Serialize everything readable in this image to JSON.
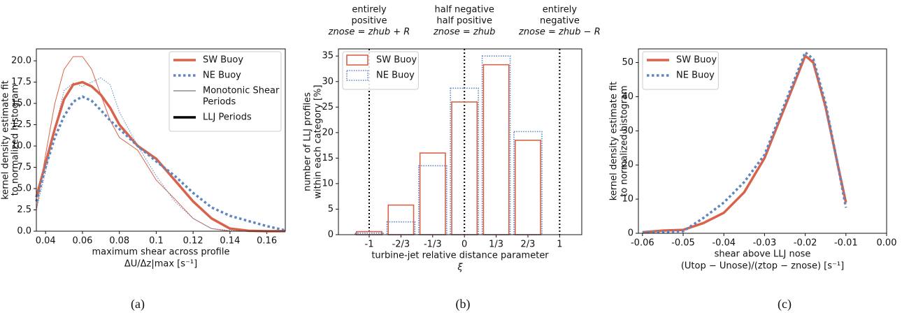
{
  "chart_data": [
    {
      "type": "line",
      "caption": "(a)",
      "ylabel": [
        "kernel density estimate fit",
        "to normalized histogram"
      ],
      "xlabel": [
        "maximum shear across profile",
        "ΔU/Δz|max [s⁻¹]"
      ],
      "xlim": [
        0.035,
        0.17
      ],
      "xticks": [
        0.04,
        0.06,
        0.08,
        0.1,
        0.12,
        0.14,
        0.16
      ],
      "ylim": [
        0,
        21.4
      ],
      "yticks": [
        {
          "value": 0,
          "label": "0.0"
        },
        2.5,
        {
          "value": 5,
          "label": "5.0"
        },
        7.5,
        {
          "value": 10,
          "label": "10.0"
        },
        12.5,
        {
          "value": 15,
          "label": "15.0"
        },
        17.5,
        {
          "value": 20,
          "label": "20.0"
        }
      ],
      "x": [
        0.035,
        0.04,
        0.045,
        0.05,
        0.055,
        0.06,
        0.065,
        0.07,
        0.075,
        0.08,
        0.09,
        0.1,
        0.11,
        0.12,
        0.13,
        0.14,
        0.15,
        0.16,
        0.17
      ],
      "series": [
        {
          "color": "#d9634a",
          "style": "solid",
          "width": "thin",
          "values": [
            2.5,
            9,
            15,
            19,
            20.5,
            20.5,
            19,
            16,
            13,
            11,
            9.5,
            6,
            3.8,
            1.5,
            0.3,
            0,
            0,
            0,
            0
          ]
        },
        {
          "color": "#5f86c0",
          "style": "dotted",
          "width": "thin",
          "values": [
            2.5,
            7,
            12,
            16.5,
            17.4,
            17,
            17.5,
            18,
            17.2,
            14,
            10,
            6.5,
            3.5,
            1.5,
            0.3,
            0.1,
            0,
            0,
            0
          ]
        },
        {
          "color": "#d9634a",
          "style": "solid",
          "width": "thick",
          "values": [
            4,
            8,
            12,
            15.5,
            17.2,
            17.5,
            17,
            16,
            14.5,
            12.5,
            10,
            8.5,
            6,
            3.5,
            1.5,
            0.3,
            0.05,
            0,
            0
          ]
        },
        {
          "color": "#5f86c0",
          "style": "dotted",
          "width": "thick",
          "values": [
            3.5,
            7.5,
            11,
            13.5,
            15.2,
            15.8,
            15.3,
            14.2,
            13,
            12,
            10,
            8.2,
            6.5,
            4.5,
            2.8,
            1.8,
            1.2,
            0.6,
            0.1
          ]
        }
      ],
      "legend_loc": "upper right",
      "legend": [
        {
          "label": "SW Buoy",
          "color": "#d9634a",
          "style": "solid",
          "width": "thick"
        },
        {
          "label": "NE Buoy",
          "color": "#5f86c0",
          "style": "dotted",
          "width": "thick"
        },
        {
          "label": [
            "Monotonic Shear",
            "Periods"
          ],
          "color": "#555555",
          "style": "solid",
          "width": "thin"
        },
        {
          "label": "LLJ Periods",
          "color": "#000000",
          "style": "solid",
          "width": "thick"
        }
      ]
    },
    {
      "type": "bar",
      "caption": "(b)",
      "ylabel": [
        "number of LLJ profiles",
        "within each category [%]"
      ],
      "xlabel": [
        "turbine-jet relative distance parameter",
        "ξ"
      ],
      "categories": [
        "-1",
        "-2/3",
        "-1/3",
        "0",
        "1/3",
        "2/3",
        "1"
      ],
      "ylim": [
        0,
        36.4
      ],
      "yticks": [
        0,
        5,
        10,
        15,
        20,
        25,
        30,
        35
      ],
      "series": [
        {
          "name": "SW Buoy",
          "color": "#d9634a",
          "style": "solid",
          "values": [
            0.6,
            5.8,
            16,
            26,
            33.3,
            18.5,
            0
          ]
        },
        {
          "name": "NE Buoy",
          "color": "#5f86c0",
          "style": "dotted",
          "values": [
            0.3,
            2.5,
            13.5,
            28.7,
            35,
            20.2,
            0
          ]
        }
      ],
      "legend_loc": "upper left",
      "annotations": [
        {
          "at": "-1",
          "text": [
            "entirely",
            "positive",
            "znose = zhub + R"
          ]
        },
        {
          "at": "0",
          "text": [
            "half negative",
            "half positive",
            "znose = zhub"
          ]
        },
        {
          "at": "1",
          "text": [
            "entirely",
            "negative",
            "znose = zhub − R"
          ]
        }
      ]
    },
    {
      "type": "line",
      "caption": "(c)",
      "ylabel": [
        "kernel density estimate fit",
        "to normalized histogram"
      ],
      "xlabel": [
        "shear above LLJ nose",
        "(Utop − Unose)/(ztop − znose) [s⁻¹]"
      ],
      "xlim": [
        -0.061,
        0.0
      ],
      "xticks": [
        -0.06,
        -0.05,
        -0.04,
        -0.03,
        -0.02,
        -0.01,
        {
          "value": 0,
          "label": "0.00"
        }
      ],
      "ylim": [
        0,
        54
      ],
      "yticks": [
        0,
        10,
        20,
        30,
        40,
        50
      ],
      "x": [
        -0.06,
        -0.055,
        -0.05,
        -0.045,
        -0.04,
        -0.035,
        -0.03,
        -0.025,
        -0.022,
        -0.02,
        -0.018,
        -0.015,
        -0.012,
        -0.01
      ],
      "series": [
        {
          "name": "SW Buoy",
          "color": "#d9634a",
          "style": "solid",
          "width": "thick",
          "values": [
            0.3,
            0.8,
            1,
            3,
            6,
            12,
            22,
            37,
            46,
            52,
            50,
            37,
            20,
            9
          ]
        },
        {
          "name": "NE Buoy",
          "color": "#5f86c0",
          "style": "dotted",
          "width": "thick",
          "values": [
            0.3,
            0.4,
            0.6,
            4.5,
            9,
            15,
            23,
            38,
            47,
            53,
            51,
            38,
            20,
            7.5
          ]
        }
      ],
      "legend_loc": "upper left"
    }
  ]
}
